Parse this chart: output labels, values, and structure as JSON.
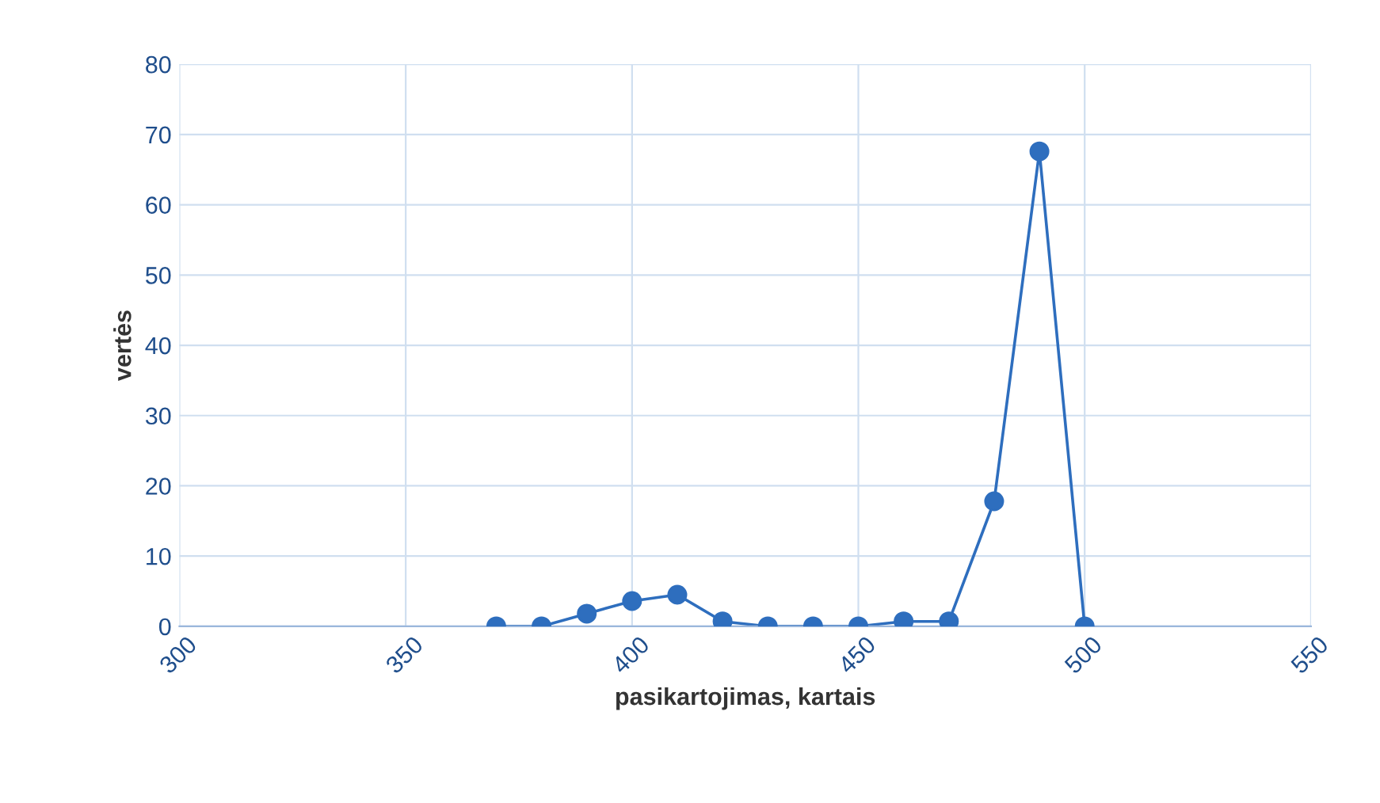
{
  "chart_data": {
    "type": "line",
    "xlabel": "pasikartojimas, kartais",
    "ylabel": "vertės",
    "x": [
      370,
      380,
      390,
      400,
      410,
      420,
      430,
      440,
      450,
      460,
      470,
      480,
      490,
      500
    ],
    "series": [
      {
        "color": "#2e6ebe",
        "values": [
          0,
          0,
          1.8,
          3.6,
          4.5,
          0.7,
          0,
          0,
          0,
          0.7,
          0.7,
          17.8,
          67.6,
          0
        ]
      }
    ],
    "xlim": [
      300,
      550
    ],
    "xticks": [
      300,
      350,
      400,
      450,
      500,
      550
    ],
    "ylim": [
      0,
      80
    ],
    "yticks": [
      0,
      10,
      20,
      30,
      40,
      50,
      60,
      70,
      80
    ],
    "grid": true,
    "marker": "circle",
    "line_style": "solid"
  }
}
